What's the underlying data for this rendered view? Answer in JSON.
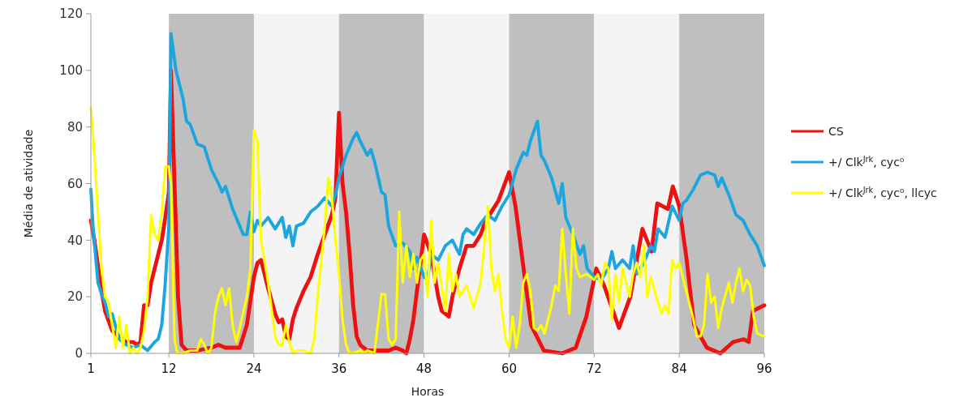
{
  "chart_data": {
    "type": "line",
    "xlabel": "Horas",
    "ylabel": "Média de atividade",
    "xlim": [
      1,
      96
    ],
    "xticks": [
      1,
      12,
      24,
      36,
      48,
      60,
      72,
      84,
      96
    ],
    "ylim": [
      0,
      120
    ],
    "yticks": [
      0,
      20,
      40,
      60,
      80,
      100,
      120
    ],
    "grid": false,
    "legend": "right",
    "marker": "none",
    "line_style": "solid",
    "bands": [
      {
        "axis": "x",
        "from": 12,
        "to": 24,
        "color": "#bfbfbf"
      },
      {
        "axis": "x",
        "from": 24,
        "to": 36,
        "color": "#f4f4f4"
      },
      {
        "axis": "x",
        "from": 36,
        "to": 48,
        "color": "#bfbfbf"
      },
      {
        "axis": "x",
        "from": 48,
        "to": 60,
        "color": "#f4f4f4"
      },
      {
        "axis": "x",
        "from": 60,
        "to": 72,
        "color": "#bfbfbf"
      },
      {
        "axis": "x",
        "from": 72,
        "to": 84,
        "color": "#f4f4f4"
      },
      {
        "axis": "x",
        "from": 84,
        "to": 96,
        "color": "#bfbfbf"
      }
    ],
    "series": [
      {
        "name": "CS",
        "color": "#ee1111",
        "x": [
          1,
          1.5,
          2.5,
          3,
          4,
          5,
          6,
          7,
          7.5,
          8,
          8.5,
          9,
          9.5,
          10,
          11,
          11.5,
          12,
          12.3,
          12.8,
          13.3,
          13.8,
          14.5,
          16,
          18,
          19,
          20,
          21,
          22,
          23,
          24,
          24.5,
          25,
          25.5,
          26,
          27,
          27.5,
          28,
          28.5,
          29,
          29.5,
          30,
          31,
          32,
          33,
          34,
          35,
          35.5,
          36,
          36.5,
          37,
          37.5,
          38,
          38.5,
          39,
          40,
          42,
          43,
          44,
          45,
          45.5,
          46,
          46.5,
          47,
          47.5,
          48,
          49,
          50,
          50.5,
          51.5,
          52,
          53,
          54,
          55,
          56,
          56.4,
          57.5,
          58.5,
          59.4,
          60,
          60.9,
          62.3,
          63.1,
          64.9,
          67.5,
          69.4,
          70.9,
          72.3,
          73.4,
          75.5,
          77.1,
          78.8,
          80.1,
          80.9,
          82.4,
          83.1,
          84,
          85,
          86.1,
          87.9,
          89.8,
          91.6,
          93.1,
          93.8,
          94.4,
          96
        ],
        "values": [
          47,
          40,
          22,
          15,
          8,
          6,
          4,
          4,
          3,
          4,
          17,
          17,
          25,
          30,
          40,
          48,
          57,
          100,
          60,
          20,
          3,
          1,
          1,
          2,
          3,
          2,
          2,
          2,
          10,
          27,
          32,
          33,
          28,
          23,
          14,
          11,
          12,
          6,
          5,
          12,
          16,
          22,
          27,
          35,
          42,
          49,
          55,
          85,
          60,
          50,
          35,
          17,
          6,
          3,
          1,
          1,
          1,
          2,
          1,
          0,
          5,
          12,
          22,
          32,
          42,
          35,
          20,
          15,
          13,
          20,
          30,
          38,
          38,
          42,
          45,
          50,
          54,
          60,
          64,
          52,
          25,
          10,
          1,
          0,
          2,
          13,
          30,
          24,
          9,
          20,
          44,
          36,
          53,
          51,
          59,
          52,
          34,
          10,
          2,
          0,
          4,
          5,
          4,
          15,
          17
        ]
      },
      {
        "name": "+/ Clk$^{Jrk}$, cyc⁰",
        "color": "#1ba6e0",
        "x": [
          1,
          1.3,
          2,
          2.5,
          3,
          3.5,
          4,
          5,
          6,
          7,
          8,
          9,
          10,
          10.5,
          11,
          11.5,
          12,
          12.3,
          13,
          13.5,
          14,
          14.5,
          15,
          16,
          17,
          18,
          19,
          19.5,
          20,
          21,
          22,
          22.5,
          23,
          23.5,
          24,
          24.5,
          25,
          26,
          27,
          28,
          28.5,
          29,
          29.5,
          30,
          31,
          32,
          33,
          34,
          35,
          35.5,
          36,
          37,
          38,
          38.5,
          39,
          40,
          40.5,
          41,
          42,
          42.5,
          43,
          44,
          45,
          46,
          46.5,
          47,
          48,
          48.5,
          49,
          50,
          51,
          52,
          53,
          53.5,
          54,
          55,
          56,
          57,
          58,
          59,
          60,
          61,
          62,
          62.5,
          63,
          64,
          64.5,
          65,
          66,
          67,
          67.5,
          68,
          69,
          70,
          70.5,
          71,
          72,
          73,
          74,
          74.5,
          75,
          76,
          77,
          77.5,
          78,
          79,
          80,
          80.5,
          81,
          82,
          83,
          84,
          84.5,
          85,
          86,
          87,
          88,
          89,
          89.5,
          90,
          91,
          92,
          93,
          94,
          95,
          96
        ],
        "values": [
          58,
          45,
          25,
          21,
          18,
          13,
          14,
          5,
          3,
          2,
          3,
          1,
          4,
          5,
          10,
          25,
          45,
          113,
          100,
          95,
          90,
          82,
          81,
          74,
          73,
          65,
          60,
          57,
          59,
          51,
          45,
          42,
          42,
          50,
          43,
          47,
          45,
          48,
          44,
          48,
          41,
          45,
          38,
          45,
          46,
          50,
          52,
          55,
          52,
          56,
          62,
          70,
          76,
          78,
          75,
          70,
          72,
          68,
          57,
          56,
          45,
          38,
          39,
          36,
          30,
          34,
          27,
          26,
          35,
          33,
          38,
          40,
          35,
          42,
          44,
          42,
          46,
          49,
          47,
          52,
          56,
          65,
          71,
          70,
          75,
          82,
          70,
          68,
          62,
          53,
          60,
          48,
          42,
          35,
          38,
          30,
          27,
          26,
          30,
          36,
          30,
          33,
          30,
          38,
          28,
          32,
          38,
          36,
          44,
          41,
          52,
          47,
          53,
          54,
          58,
          63,
          64,
          63,
          59,
          62,
          56,
          49,
          47,
          42,
          38,
          31
        ]
      },
      {
        "name": "+/ Clk$^{Jrk}$, cyc⁰, llcyc",
        "color": "#ffff00",
        "x": [
          1,
          1.5,
          2,
          2.5,
          3,
          3.5,
          4,
          4.5,
          5,
          5.5,
          6,
          6.5,
          7,
          7.5,
          8,
          8.5,
          9,
          9.5,
          10,
          10.5,
          11,
          11.5,
          12,
          12.3,
          12.8,
          13.2,
          14,
          15,
          16,
          16.5,
          17,
          17.5,
          18,
          18.5,
          19,
          19.5,
          20,
          20.5,
          21,
          21.5,
          22,
          23,
          23.5,
          24,
          24.5,
          25,
          26,
          27,
          27.5,
          28,
          28.5,
          29,
          29.5,
          30,
          31,
          32,
          32.5,
          33,
          34,
          34.5,
          35,
          35.5,
          36,
          36.5,
          37,
          37.5,
          38,
          39,
          39.5,
          40,
          41,
          42,
          42.5,
          43,
          43.5,
          44,
          44.5,
          45,
          45.5,
          46,
          46.5,
          47,
          47.5,
          48,
          48.5,
          49,
          49.5,
          50,
          51,
          51.5,
          52,
          52.5,
          53,
          54,
          55,
          56,
          57,
          57.5,
          58,
          58.5,
          59,
          59.5,
          60,
          60.5,
          61,
          61.5,
          62,
          62.5,
          63,
          63.5,
          64,
          64.5,
          65,
          66,
          66.5,
          67,
          67.5,
          68,
          68.5,
          69,
          69.5,
          70,
          71,
          72,
          72.5,
          73,
          73.5,
          74,
          74.5,
          75,
          75.5,
          76,
          77,
          77.5,
          78,
          78.5,
          79,
          79.5,
          80,
          81,
          81.5,
          82,
          82.5,
          83,
          83.5,
          84,
          85,
          86,
          86.5,
          87,
          87.5,
          88,
          88.5,
          89,
          89.5,
          90,
          91,
          91.5,
          92,
          92.5,
          93,
          93.5,
          94,
          94.5,
          95,
          96
        ],
        "values": [
          87,
          70,
          50,
          30,
          20,
          18,
          10,
          2,
          13,
          2,
          10,
          0,
          2,
          0,
          2,
          8,
          20,
          49,
          42,
          40,
          50,
          66,
          66,
          60,
          5,
          0,
          0,
          1,
          1,
          5,
          3,
          0,
          2,
          14,
          20,
          23,
          17,
          23,
          10,
          4,
          9,
          20,
          30,
          79,
          75,
          40,
          25,
          6,
          3,
          3,
          10,
          4,
          0,
          1,
          1,
          0,
          5,
          20,
          45,
          62,
          55,
          40,
          28,
          12,
          3,
          0,
          0,
          1,
          0,
          1,
          0,
          21,
          21,
          5,
          3,
          5,
          50,
          25,
          38,
          27,
          35,
          25,
          33,
          35,
          20,
          47,
          25,
          32,
          15,
          35,
          22,
          28,
          20,
          24,
          16,
          25,
          52,
          30,
          22,
          28,
          15,
          5,
          2,
          13,
          2,
          10,
          25,
          28,
          22,
          9,
          8,
          10,
          7,
          17,
          24,
          22,
          44,
          28,
          14,
          44,
          30,
          27,
          28,
          26,
          28,
          24,
          32,
          30,
          12,
          28,
          18,
          30,
          20,
          28,
          32,
          27,
          38,
          20,
          27,
          18,
          14,
          17,
          14,
          33,
          30,
          32,
          22,
          12,
          6,
          6,
          10,
          28,
          18,
          20,
          9,
          16,
          25,
          18,
          25,
          30,
          22,
          26,
          24,
          13,
          7,
          6
        ]
      }
    ]
  }
}
